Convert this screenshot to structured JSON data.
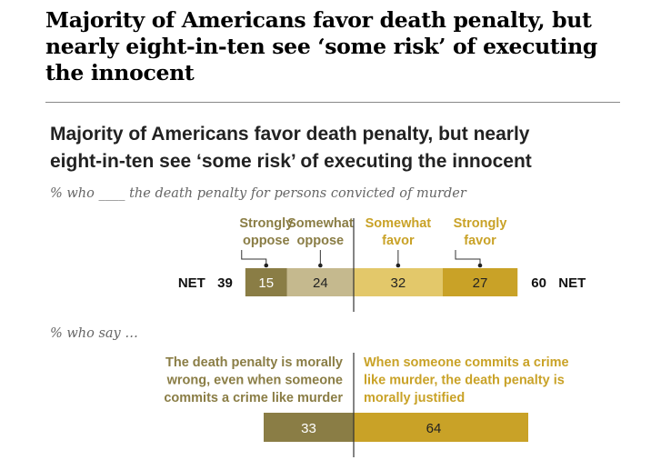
{
  "page_title": "Majority of Americans favor death penalty, but nearly eight-in-ten see ‘some risk’ of executing the innocent",
  "colors": {
    "strongly_oppose": "#8a7d45",
    "somewhat_oppose": "#c5b98e",
    "somewhat_favor": "#e3c86a",
    "strongly_favor": "#c9a227",
    "oppose_label": "#8a7d45",
    "favor_label": "#c9a227"
  },
  "chart_data": [
    {
      "type": "bar",
      "orientation": "horizontal-diverging",
      "title_lines": [
        "Majority of Americans favor death penalty, but nearly",
        "eight-in-ten see ‘some risk’ of executing the innocent"
      ],
      "subtitle": "% who ____ the death penalty for persons convicted of murder",
      "series": [
        {
          "name": "Strongly oppose",
          "label_lines": [
            "Strongly",
            "oppose"
          ],
          "side": "oppose",
          "value": 15
        },
        {
          "name": "Somewhat oppose",
          "label_lines": [
            "Somewhat",
            "oppose"
          ],
          "side": "oppose",
          "value": 24
        },
        {
          "name": "Somewhat favor",
          "label_lines": [
            "Somewhat",
            "favor"
          ],
          "side": "favor",
          "value": 32
        },
        {
          "name": "Strongly favor",
          "label_lines": [
            "Strongly",
            "favor"
          ],
          "side": "favor",
          "value": 27
        }
      ],
      "net_oppose_label": "NET",
      "net_oppose": 39,
      "net_favor": 60,
      "net_favor_label": "NET"
    },
    {
      "type": "bar",
      "orientation": "horizontal-diverging",
      "subtitle": "% who say …",
      "series": [
        {
          "name": "The death penalty is morally wrong, even when someone commits a crime like murder",
          "label_lines": [
            "The death penalty is morally",
            "wrong, even when someone",
            "commits a crime like murder"
          ],
          "side": "oppose",
          "value": 33
        },
        {
          "name": "When someone commits a crime like murder, the death penalty is morally justified",
          "label_lines": [
            "When someone commits a crime",
            "like murder, the death penalty is",
            "morally justified"
          ],
          "side": "favor",
          "value": 64
        }
      ]
    }
  ]
}
